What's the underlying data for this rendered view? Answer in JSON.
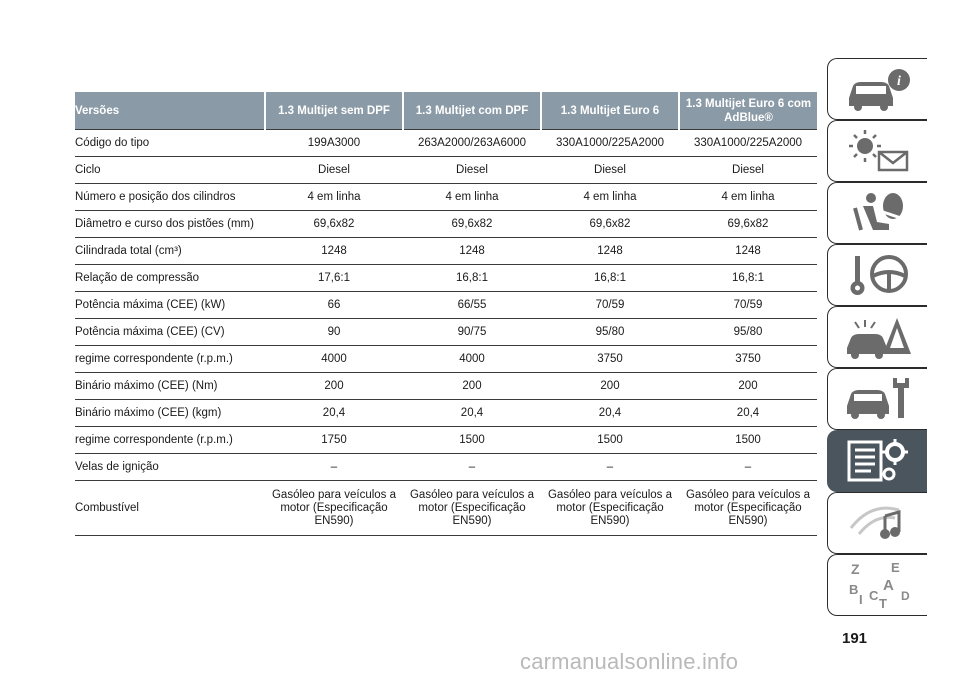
{
  "table": {
    "headers": [
      "Versões",
      "1.3 Multijet sem DPF",
      "1.3 Multijet com DPF",
      "1.3 Multijet Euro 6",
      "1.3 Multijet Euro 6 com AdBlue®"
    ],
    "rows": [
      [
        "Código do tipo",
        "199A3000",
        "263A2000/263A6000",
        "330A1000/225A2000",
        "330A1000/225A2000"
      ],
      [
        "Ciclo",
        "Diesel",
        "Diesel",
        "Diesel",
        "Diesel"
      ],
      [
        "Número e posição dos cilindros",
        "4 em linha",
        "4 em linha",
        "4 em linha",
        "4 em linha"
      ],
      [
        "Diâmetro e curso dos pistões (mm)",
        "69,6x82",
        "69,6x82",
        "69,6x82",
        "69,6x82"
      ],
      [
        "Cilindrada total (cm³)",
        "1248",
        "1248",
        "1248",
        "1248"
      ],
      [
        "Relação de compressão",
        "17,6:1",
        "16,8:1",
        "16,8:1",
        "16,8:1"
      ],
      [
        "Potência máxima (CEE) (kW)",
        "66",
        "66/55",
        "70/59",
        "70/59"
      ],
      [
        "Potência máxima (CEE) (CV)",
        "90",
        "90/75",
        "95/80",
        "95/80"
      ],
      [
        "regime correspondente (r.p.m.)",
        "4000",
        "4000",
        "3750",
        "3750"
      ],
      [
        "Binário máximo (CEE) (Nm)",
        "200",
        "200",
        "200",
        "200"
      ],
      [
        "Binário máximo (CEE) (kgm)",
        "20,4",
        "20,4",
        "20,4",
        "20,4"
      ],
      [
        "regime correspondente (r.p.m.)",
        "1750",
        "1500",
        "1500",
        "1500"
      ],
      [
        "Velas de ignição",
        "–",
        "–",
        "–",
        "–"
      ],
      [
        "Combustível",
        "Gasóleo para veículos a motor (Especificação EN590)",
        "Gasóleo para veículos a motor (Especificação EN590)",
        "Gasóleo para veículos a motor (Especificação EN590)",
        "Gasóleo para veículos a motor (Especificação EN590)"
      ]
    ]
  },
  "side_tabs": [
    {
      "icon": "car-info-icon",
      "active": false
    },
    {
      "icon": "warning-light-message-icon",
      "active": false
    },
    {
      "icon": "seat-airbag-icon",
      "active": false
    },
    {
      "icon": "key-steering-wheel-icon",
      "active": false
    },
    {
      "icon": "breakdown-warning-triangle-icon",
      "active": false
    },
    {
      "icon": "car-maintenance-wrench-icon",
      "active": false
    },
    {
      "icon": "technical-data-gear-icon",
      "active": true
    },
    {
      "icon": "multimedia-music-icon",
      "active": false
    },
    {
      "icon": "alphabetical-index-icon",
      "active": false
    }
  ],
  "page_number": "191",
  "watermark": "carmanualsonline.info",
  "colors": {
    "header_bg": "#8a9aa6",
    "active_tab_bg": "#4b555d",
    "rule": "#3a3a3a"
  }
}
